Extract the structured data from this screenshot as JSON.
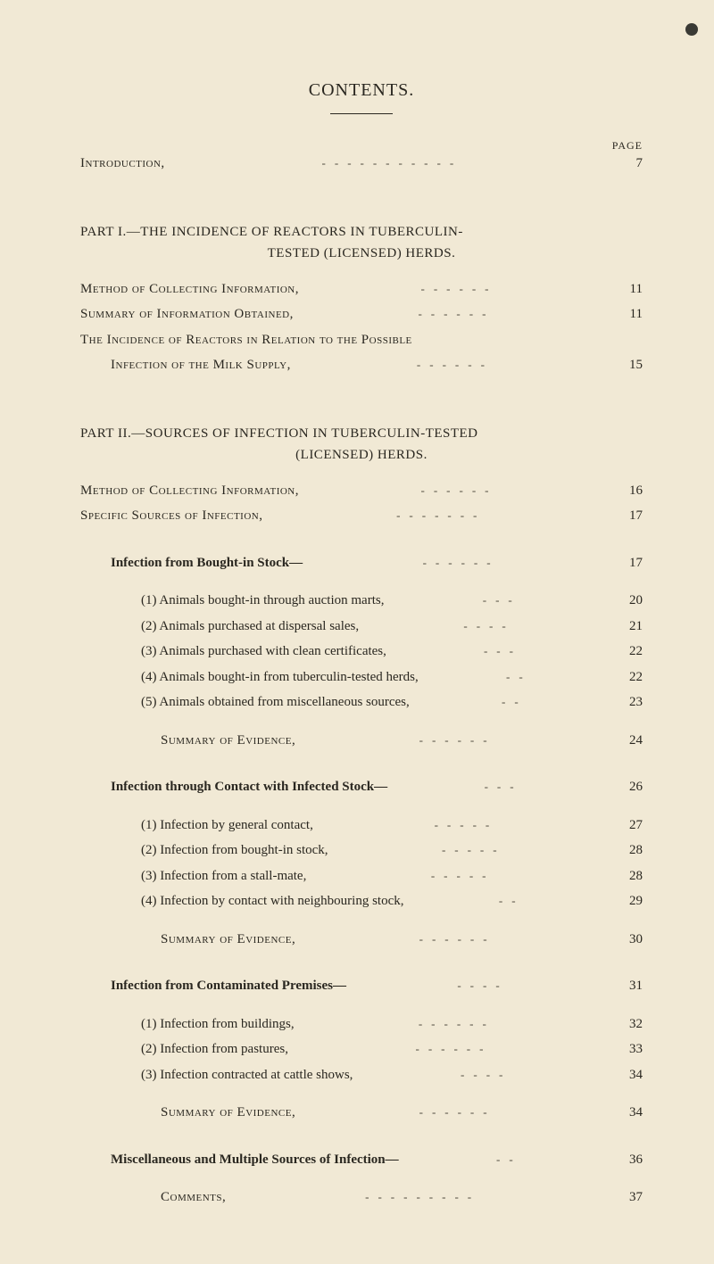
{
  "title": "CONTENTS.",
  "page_label": "PAGE",
  "colors": {
    "background": "#f1e9d5",
    "text": "#2a2720",
    "leader": "#4a463a"
  },
  "typography": {
    "title_fontsize": 20,
    "body_fontsize": 15,
    "page_label_fontsize": 12,
    "line_height": 1.9,
    "font_family": "Georgia, Times New Roman, serif"
  },
  "entries": [
    {
      "type": "row",
      "indent": 0,
      "label_style": "smallcaps",
      "label": "Introduction,",
      "leaders": "-----------",
      "page": "7",
      "gap_after": "lg"
    },
    {
      "type": "part",
      "line1": "PART I.—THE INCIDENCE OF REACTORS IN TUBERCULIN-",
      "line2": "TESTED (LICENSED) HERDS."
    },
    {
      "type": "row",
      "indent": 0,
      "label_style": "smallcaps",
      "label": "Method of Collecting Information,",
      "leaders": "------",
      "page": "11"
    },
    {
      "type": "row",
      "indent": 0,
      "label_style": "smallcaps",
      "label": "Summary of Information Obtained,",
      "leaders": "------",
      "page": "11"
    },
    {
      "type": "row",
      "indent": 0,
      "label_style": "smallcaps",
      "label": "The Incidence of Reactors in Relation to the Possible",
      "leaders": "",
      "page": ""
    },
    {
      "type": "row",
      "indent": 1,
      "label_style": "smallcaps",
      "label": "Infection of the Milk Supply,",
      "leaders": "------",
      "page": "15",
      "gap_after": "lg"
    },
    {
      "type": "part",
      "line1": "PART II.—SOURCES OF INFECTION IN TUBERCULIN-TESTED",
      "line2": "(LICENSED) HERDS."
    },
    {
      "type": "row",
      "indent": 0,
      "label_style": "smallcaps",
      "label": "Method of Collecting Information,",
      "leaders": "------",
      "page": "16"
    },
    {
      "type": "row",
      "indent": 0,
      "label_style": "smallcaps",
      "label": "Specific Sources of Infection,",
      "leaders": "-------",
      "page": "17",
      "gap_after": "lg"
    },
    {
      "type": "row",
      "indent": 1,
      "label_style": "bold",
      "label": "Infection from Bought-in Stock—",
      "leaders": "------",
      "page": "17",
      "gap_after": "sm"
    },
    {
      "type": "row",
      "indent": 2,
      "label_style": "",
      "label": "(1) Animals bought-in through auction marts,",
      "leaders": "---",
      "page": "20"
    },
    {
      "type": "row",
      "indent": 2,
      "label_style": "",
      "label": "(2) Animals purchased at dispersal sales,",
      "leaders": "----",
      "page": "21"
    },
    {
      "type": "row",
      "indent": 2,
      "label_style": "",
      "label": "(3) Animals purchased with clean certificates,",
      "leaders": "---",
      "page": "22"
    },
    {
      "type": "row",
      "indent": 2,
      "label_style": "",
      "label": "(4) Animals bought-in from tuberculin-tested herds,",
      "leaders": "--",
      "page": "22"
    },
    {
      "type": "row",
      "indent": 2,
      "label_style": "",
      "label": "(5) Animals obtained from miscellaneous sources,",
      "leaders": "--",
      "page": "23",
      "gap_after": "sm"
    },
    {
      "type": "row",
      "indent": 3,
      "label_style": "smallcaps",
      "label": "Summary of Evidence,",
      "leaders": "------",
      "page": "24",
      "gap_after": "lg"
    },
    {
      "type": "row",
      "indent": 1,
      "label_style": "bold",
      "label": "Infection through Contact with Infected Stock—",
      "leaders": "---",
      "page": "26",
      "gap_after": "sm"
    },
    {
      "type": "row",
      "indent": 2,
      "label_style": "",
      "label": "(1) Infection by general contact,",
      "leaders": "-----",
      "page": "27"
    },
    {
      "type": "row",
      "indent": 2,
      "label_style": "",
      "label": "(2) Infection from bought-in stock,",
      "leaders": "-----",
      "page": "28"
    },
    {
      "type": "row",
      "indent": 2,
      "label_style": "",
      "label": "(3) Infection from a stall-mate,",
      "leaders": "-----",
      "page": "28"
    },
    {
      "type": "row",
      "indent": 2,
      "label_style": "",
      "label": "(4) Infection by contact with neighbouring stock,",
      "leaders": "--",
      "page": "29",
      "gap_after": "sm"
    },
    {
      "type": "row",
      "indent": 3,
      "label_style": "smallcaps",
      "label": "Summary of Evidence,",
      "leaders": "------",
      "page": "30",
      "gap_after": "lg"
    },
    {
      "type": "row",
      "indent": 1,
      "label_style": "bold",
      "label": "Infection from Contaminated Premises—",
      "leaders": "----",
      "page": "31",
      "gap_after": "sm"
    },
    {
      "type": "row",
      "indent": 2,
      "label_style": "",
      "label": "(1) Infection from buildings,",
      "leaders": "------",
      "page": "32"
    },
    {
      "type": "row",
      "indent": 2,
      "label_style": "",
      "label": "(2) Infection from pastures,",
      "leaders": "------",
      "page": "33"
    },
    {
      "type": "row",
      "indent": 2,
      "label_style": "",
      "label": "(3) Infection contracted at cattle shows,",
      "leaders": "----",
      "page": "34",
      "gap_after": "sm"
    },
    {
      "type": "row",
      "indent": 3,
      "label_style": "smallcaps",
      "label": "Summary of Evidence,",
      "leaders": "------",
      "page": "34",
      "gap_after": "lg"
    },
    {
      "type": "row",
      "indent": 1,
      "label_style": "bold",
      "label": "Miscellaneous and Multiple Sources of Infection—",
      "leaders": "--",
      "page": "36",
      "gap_after": "sm"
    },
    {
      "type": "row",
      "indent": 3,
      "label_style": "smallcaps",
      "label": "Comments,",
      "leaders": "---------",
      "page": "37"
    }
  ]
}
